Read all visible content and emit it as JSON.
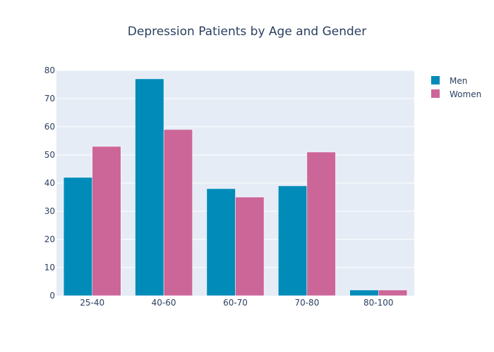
{
  "chart_data": {
    "type": "bar",
    "title": "Depression Patients by Age and Gender",
    "xlabel": "",
    "ylabel": "",
    "categories": [
      "25-40",
      "40-60",
      "60-70",
      "70-80",
      "80-100"
    ],
    "series": [
      {
        "name": "Men",
        "values": [
          42,
          77,
          38,
          39,
          2
        ],
        "color": "#008bb9"
      },
      {
        "name": "Women",
        "values": [
          53,
          59,
          35,
          51,
          2
        ],
        "color": "#cc6699"
      }
    ],
    "ylim": [
      0,
      80
    ],
    "yticks": [
      0,
      10,
      20,
      30,
      40,
      50,
      60,
      70,
      80
    ],
    "grid": true,
    "legend_position": "top-right",
    "plot_background": "#e5ecf6"
  }
}
